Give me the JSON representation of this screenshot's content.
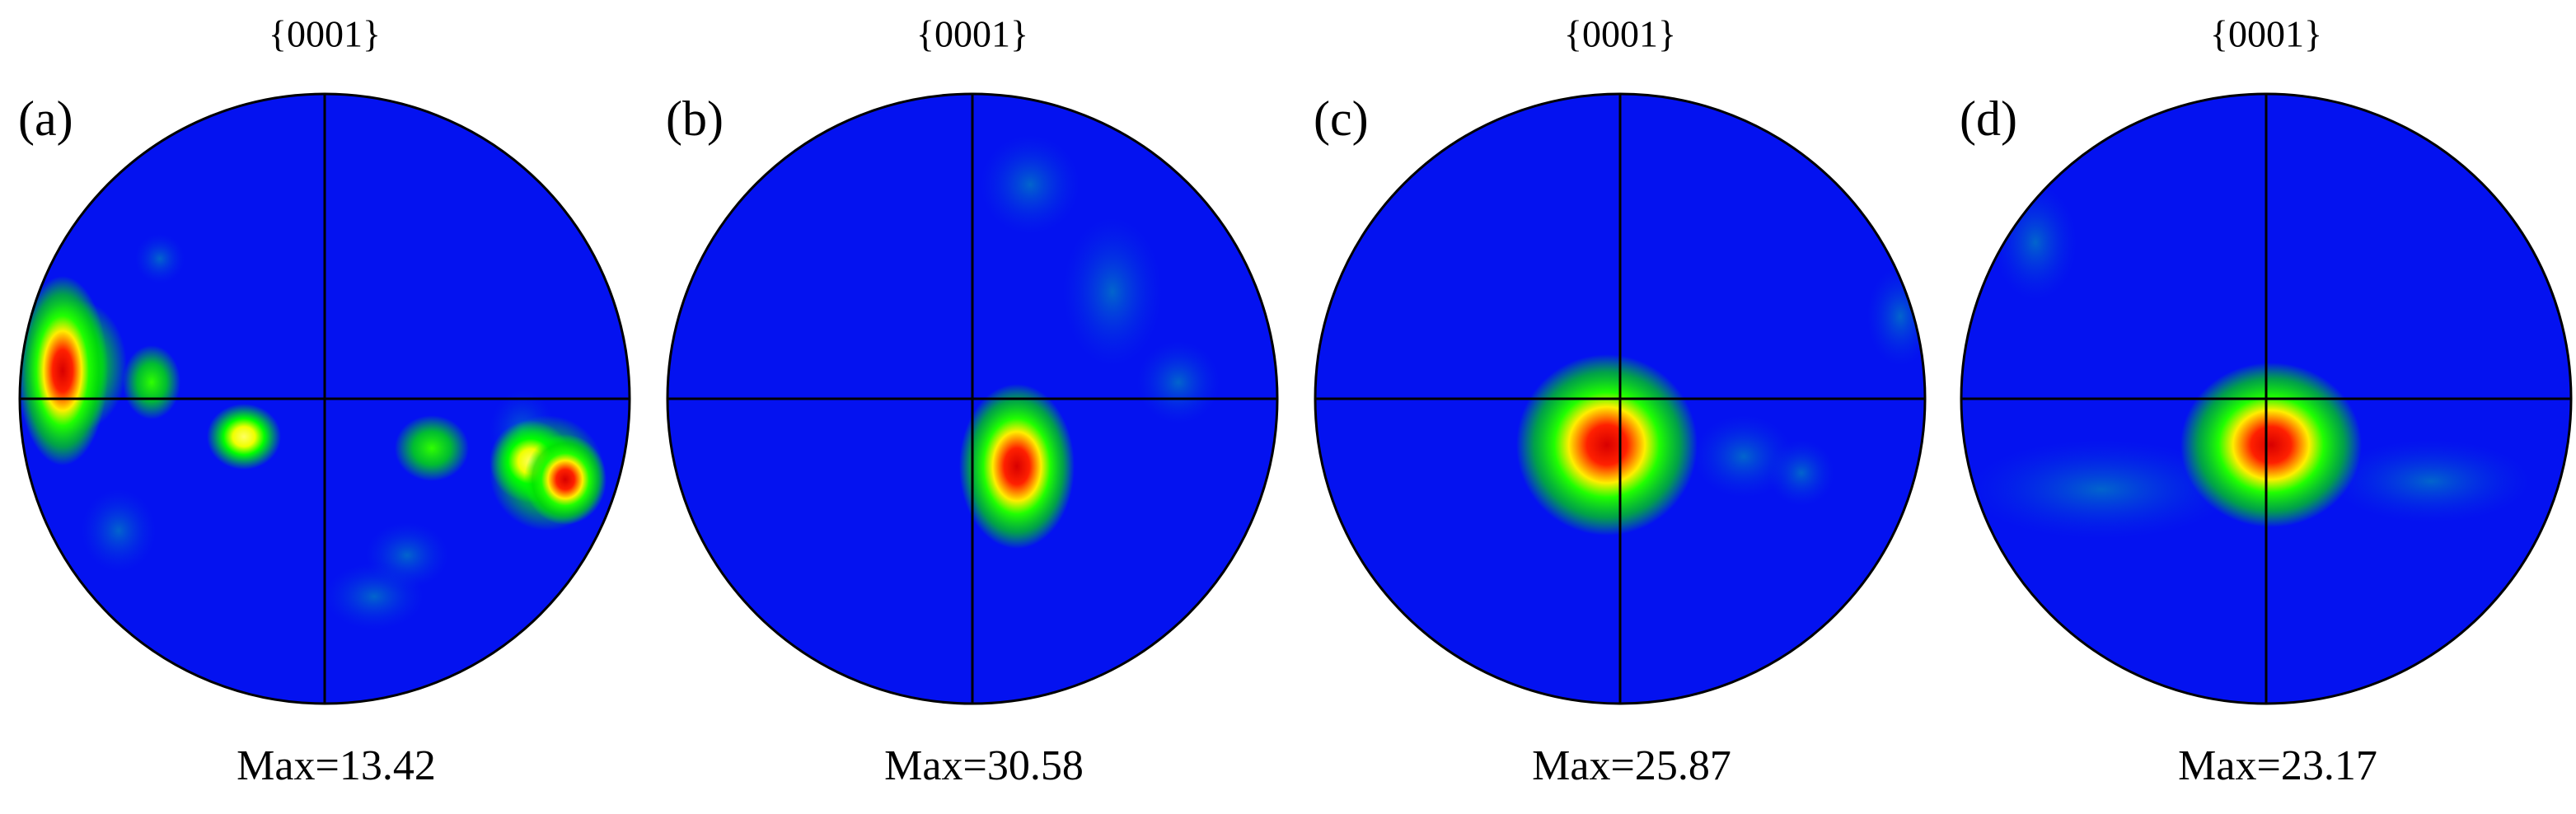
{
  "panels": [
    {
      "label": "(a)",
      "title": "{0001}",
      "max": "Max=13.42"
    },
    {
      "label": "(b)",
      "title": "{0001}",
      "max": "Max=30.58"
    },
    {
      "label": "(c)",
      "title": "{0001}",
      "max": "Max=25.87"
    },
    {
      "label": "(d)",
      "title": "{0001}",
      "max": "Max=23.17"
    }
  ]
}
